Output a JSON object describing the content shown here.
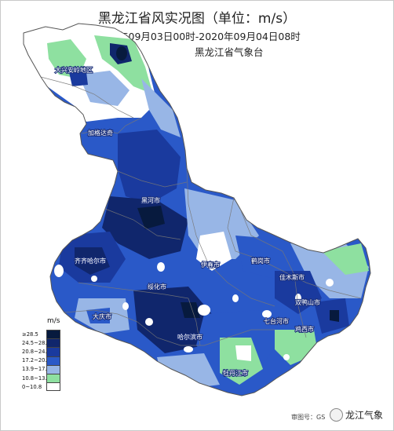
{
  "title": "黑龙江省风实况图（单位：m/s）",
  "subtitle": "2020年09月03日00时-2020年09月04日08时",
  "organization": "黑龙江省气象台",
  "legend": {
    "unit": "m/s",
    "classes": [
      {
        "label": "≥28.5",
        "color": "#071a3e"
      },
      {
        "label": "24.5~28.5",
        "color": "#10266c"
      },
      {
        "label": "20.8~24.5",
        "color": "#1a3a9e"
      },
      {
        "label": "17.2~20.8",
        "color": "#2a59c8"
      },
      {
        "label": "13.9~17.2",
        "color": "#98b6e6"
      },
      {
        "label": "10.8~13.9",
        "color": "#8ee0a0"
      },
      {
        "label": "0~10.8",
        "color": "#ffffff"
      }
    ]
  },
  "cities": [
    {
      "name": "大兴安岭地区"
    },
    {
      "name": "加格达奇"
    },
    {
      "name": "黑河市"
    },
    {
      "name": "齐齐哈尔市"
    },
    {
      "name": "绥化市"
    },
    {
      "name": "伊春市"
    },
    {
      "name": "鹤岗市"
    },
    {
      "name": "佳木斯市"
    },
    {
      "name": "双鸭山市"
    },
    {
      "name": "七台河市"
    },
    {
      "name": "鸡西市"
    },
    {
      "name": "大庆市"
    },
    {
      "name": "哈尔滨市"
    },
    {
      "name": "牡丹江市"
    }
  ],
  "footer": {
    "review_no": "审图号：GS",
    "watermark": "龙江气象"
  }
}
